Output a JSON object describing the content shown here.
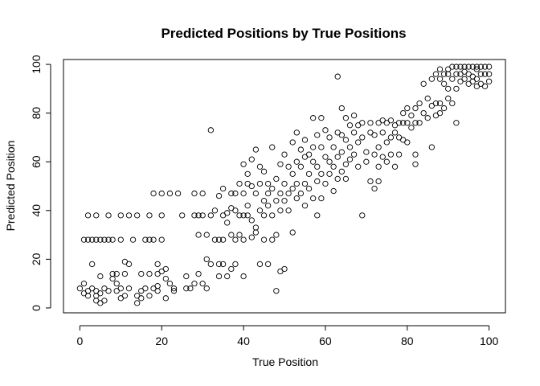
{
  "chart_data": {
    "type": "scatter",
    "title": "Predicted Positions by True Positions",
    "xlabel": "True Position",
    "ylabel": "Predicted Position",
    "xlim": [
      -4,
      104
    ],
    "ylim": [
      -2,
      102
    ],
    "xticks": [
      "0",
      "20",
      "40",
      "60",
      "80",
      "100"
    ],
    "yticks": [
      "0",
      "20",
      "40",
      "60",
      "80",
      "100"
    ],
    "grid": false,
    "legend": "none",
    "marker": "open-circle",
    "colors": {
      "marker": "#000000",
      "axis": "#000000",
      "background": "#ffffff"
    },
    "series": [
      {
        "points": [
          [
            0,
            8
          ],
          [
            1,
            6
          ],
          [
            1,
            10
          ],
          [
            1,
            28
          ],
          [
            2,
            7
          ],
          [
            2,
            5
          ],
          [
            2,
            38
          ],
          [
            2,
            28
          ],
          [
            3,
            8
          ],
          [
            3,
            28
          ],
          [
            3,
            18
          ],
          [
            4,
            5
          ],
          [
            4,
            3
          ],
          [
            4,
            7
          ],
          [
            4,
            38
          ],
          [
            4,
            28
          ],
          [
            5,
            2
          ],
          [
            5,
            6
          ],
          [
            5,
            13
          ],
          [
            5,
            28
          ],
          [
            6,
            3
          ],
          [
            6,
            8
          ],
          [
            6,
            28
          ],
          [
            7,
            7
          ],
          [
            7,
            28
          ],
          [
            7,
            38
          ],
          [
            8,
            12
          ],
          [
            8,
            14
          ],
          [
            8,
            28
          ],
          [
            9,
            7
          ],
          [
            9,
            10
          ],
          [
            9,
            14
          ],
          [
            10,
            4
          ],
          [
            10,
            8
          ],
          [
            10,
            38
          ],
          [
            10,
            28
          ],
          [
            11,
            5
          ],
          [
            11,
            19
          ],
          [
            11,
            14
          ],
          [
            12,
            8
          ],
          [
            12,
            18
          ],
          [
            12,
            38
          ],
          [
            13,
            28
          ],
          [
            14,
            38
          ],
          [
            14,
            5
          ],
          [
            14,
            2
          ],
          [
            15,
            14
          ],
          [
            15,
            7
          ],
          [
            15,
            4
          ],
          [
            16,
            8
          ],
          [
            16,
            28
          ],
          [
            17,
            38
          ],
          [
            17,
            14
          ],
          [
            17,
            5
          ],
          [
            17,
            28
          ],
          [
            18,
            28
          ],
          [
            18,
            8
          ],
          [
            18,
            47
          ],
          [
            19,
            7
          ],
          [
            19,
            9
          ],
          [
            19,
            18
          ],
          [
            19,
            14
          ],
          [
            20,
            38
          ],
          [
            20,
            47
          ],
          [
            20,
            15
          ],
          [
            20,
            28
          ],
          [
            21,
            12
          ],
          [
            21,
            4
          ],
          [
            21,
            16
          ],
          [
            22,
            47
          ],
          [
            22,
            10
          ],
          [
            23,
            7
          ],
          [
            23,
            8
          ],
          [
            24,
            47
          ],
          [
            25,
            38
          ],
          [
            26,
            13
          ],
          [
            26,
            8
          ],
          [
            27,
            8
          ],
          [
            28,
            10
          ],
          [
            28,
            38
          ],
          [
            28,
            47
          ],
          [
            29,
            30
          ],
          [
            29,
            14
          ],
          [
            29,
            38
          ],
          [
            30,
            47
          ],
          [
            30,
            38
          ],
          [
            30,
            10
          ],
          [
            31,
            8
          ],
          [
            31,
            20
          ],
          [
            31,
            30
          ],
          [
            32,
            73
          ],
          [
            32,
            18
          ],
          [
            32,
            38
          ],
          [
            33,
            40
          ],
          [
            33,
            28
          ],
          [
            34,
            46
          ],
          [
            34,
            18
          ],
          [
            34,
            13
          ],
          [
            34,
            28
          ],
          [
            35,
            38
          ],
          [
            35,
            28
          ],
          [
            35,
            18
          ],
          [
            35,
            49
          ],
          [
            36,
            35
          ],
          [
            36,
            39
          ],
          [
            36,
            13
          ],
          [
            37,
            47
          ],
          [
            37,
            41
          ],
          [
            37,
            30
          ],
          [
            37,
            16
          ],
          [
            38,
            28
          ],
          [
            38,
            18
          ],
          [
            38,
            47
          ],
          [
            38,
            40
          ],
          [
            39,
            51
          ],
          [
            39,
            38
          ],
          [
            39,
            30
          ],
          [
            40,
            59
          ],
          [
            40,
            47
          ],
          [
            40,
            38
          ],
          [
            40,
            13
          ],
          [
            40,
            28
          ],
          [
            41,
            55
          ],
          [
            41,
            51
          ],
          [
            41,
            42
          ],
          [
            41,
            38
          ],
          [
            42,
            61
          ],
          [
            42,
            50
          ],
          [
            42,
            36
          ],
          [
            42,
            29
          ],
          [
            43,
            65
          ],
          [
            43,
            47
          ],
          [
            43,
            31
          ],
          [
            43,
            33
          ],
          [
            44,
            58
          ],
          [
            44,
            51
          ],
          [
            44,
            40
          ],
          [
            44,
            18
          ],
          [
            45,
            56
          ],
          [
            45,
            44
          ],
          [
            45,
            38
          ],
          [
            45,
            28
          ],
          [
            46,
            47
          ],
          [
            46,
            51
          ],
          [
            46,
            42
          ],
          [
            46,
            18
          ],
          [
            47,
            66
          ],
          [
            47,
            49
          ],
          [
            47,
            38
          ],
          [
            47,
            28
          ],
          [
            48,
            53
          ],
          [
            48,
            44
          ],
          [
            48,
            30
          ],
          [
            48,
            7
          ],
          [
            49,
            59
          ],
          [
            49,
            47
          ],
          [
            49,
            40
          ],
          [
            49,
            15
          ],
          [
            50,
            63
          ],
          [
            50,
            51
          ],
          [
            50,
            44
          ],
          [
            50,
            16
          ],
          [
            51,
            58
          ],
          [
            51,
            47
          ],
          [
            51,
            40
          ],
          [
            52,
            68
          ],
          [
            52,
            55
          ],
          [
            52,
            49
          ],
          [
            52,
            31
          ],
          [
            53,
            72
          ],
          [
            53,
            60
          ],
          [
            53,
            51
          ],
          [
            53,
            45
          ],
          [
            54,
            65
          ],
          [
            54,
            58
          ],
          [
            54,
            47
          ],
          [
            55,
            69
          ],
          [
            55,
            62
          ],
          [
            55,
            51
          ],
          [
            55,
            42
          ],
          [
            56,
            63
          ],
          [
            56,
            55
          ],
          [
            56,
            49
          ],
          [
            57,
            78
          ],
          [
            57,
            66
          ],
          [
            57,
            60
          ],
          [
            57,
            45
          ],
          [
            58,
            71
          ],
          [
            58,
            58
          ],
          [
            58,
            52
          ],
          [
            58,
            38
          ],
          [
            59,
            78
          ],
          [
            59,
            66
          ],
          [
            59,
            55
          ],
          [
            59,
            45
          ],
          [
            60,
            73
          ],
          [
            60,
            62
          ],
          [
            60,
            51
          ],
          [
            61,
            70
          ],
          [
            61,
            60
          ],
          [
            61,
            55
          ],
          [
            62,
            66
          ],
          [
            62,
            58
          ],
          [
            62,
            48
          ],
          [
            63,
            95
          ],
          [
            63,
            72
          ],
          [
            63,
            62
          ],
          [
            63,
            53
          ],
          [
            64,
            82
          ],
          [
            64,
            71
          ],
          [
            64,
            64
          ],
          [
            64,
            56
          ],
          [
            65,
            78
          ],
          [
            65,
            69
          ],
          [
            65,
            59
          ],
          [
            65,
            53
          ],
          [
            66,
            75
          ],
          [
            66,
            66
          ],
          [
            66,
            61
          ],
          [
            67,
            79
          ],
          [
            67,
            72
          ],
          [
            67,
            63
          ],
          [
            68,
            75
          ],
          [
            68,
            68
          ],
          [
            68,
            58
          ],
          [
            69,
            76
          ],
          [
            69,
            70
          ],
          [
            69,
            38
          ],
          [
            70,
            64
          ],
          [
            70,
            60
          ],
          [
            71,
            76
          ],
          [
            71,
            72
          ],
          [
            71,
            52
          ],
          [
            72,
            71
          ],
          [
            72,
            63
          ],
          [
            72,
            49
          ],
          [
            73,
            76
          ],
          [
            73,
            66
          ],
          [
            73,
            58
          ],
          [
            73,
            52
          ],
          [
            74,
            77
          ],
          [
            74,
            72
          ],
          [
            74,
            62
          ],
          [
            75,
            76
          ],
          [
            75,
            68
          ],
          [
            75,
            60
          ],
          [
            76,
            77
          ],
          [
            76,
            70
          ],
          [
            76,
            63
          ],
          [
            77,
            75
          ],
          [
            77,
            72
          ],
          [
            77,
            58
          ],
          [
            78,
            76
          ],
          [
            78,
            70
          ],
          [
            78,
            63
          ],
          [
            79,
            80
          ],
          [
            79,
            76
          ],
          [
            79,
            69
          ],
          [
            80,
            82
          ],
          [
            80,
            76
          ],
          [
            80,
            68
          ],
          [
            81,
            79
          ],
          [
            81,
            74
          ],
          [
            82,
            82
          ],
          [
            82,
            76
          ],
          [
            82,
            63
          ],
          [
            82,
            59
          ],
          [
            83,
            84
          ],
          [
            83,
            76
          ],
          [
            84,
            92
          ],
          [
            84,
            80
          ],
          [
            85,
            86
          ],
          [
            85,
            78
          ],
          [
            86,
            94
          ],
          [
            86,
            83
          ],
          [
            86,
            66
          ],
          [
            87,
            96
          ],
          [
            87,
            84
          ],
          [
            87,
            79
          ],
          [
            88,
            98
          ],
          [
            88,
            94
          ],
          [
            88,
            84
          ],
          [
            88,
            80
          ],
          [
            89,
            96
          ],
          [
            89,
            92
          ],
          [
            89,
            82
          ],
          [
            90,
            98
          ],
          [
            90,
            96
          ],
          [
            90,
            86
          ],
          [
            90,
            90
          ],
          [
            91,
            99
          ],
          [
            91,
            94
          ],
          [
            91,
            84
          ],
          [
            92,
            99
          ],
          [
            92,
            96
          ],
          [
            92,
            90
          ],
          [
            92,
            76
          ],
          [
            93,
            99
          ],
          [
            93,
            96
          ],
          [
            93,
            93
          ],
          [
            94,
            99
          ],
          [
            94,
            97
          ],
          [
            94,
            94
          ],
          [
            95,
            99
          ],
          [
            95,
            96
          ],
          [
            95,
            92
          ],
          [
            96,
            99
          ],
          [
            96,
            95
          ],
          [
            96,
            93
          ],
          [
            97,
            99
          ],
          [
            97,
            98
          ],
          [
            97,
            94
          ],
          [
            97,
            91
          ],
          [
            98,
            99
          ],
          [
            98,
            96
          ],
          [
            98,
            92
          ],
          [
            99,
            99
          ],
          [
            99,
            96
          ],
          [
            99,
            91
          ],
          [
            100,
            99
          ],
          [
            100,
            96
          ],
          [
            100,
            93
          ]
        ]
      }
    ]
  }
}
